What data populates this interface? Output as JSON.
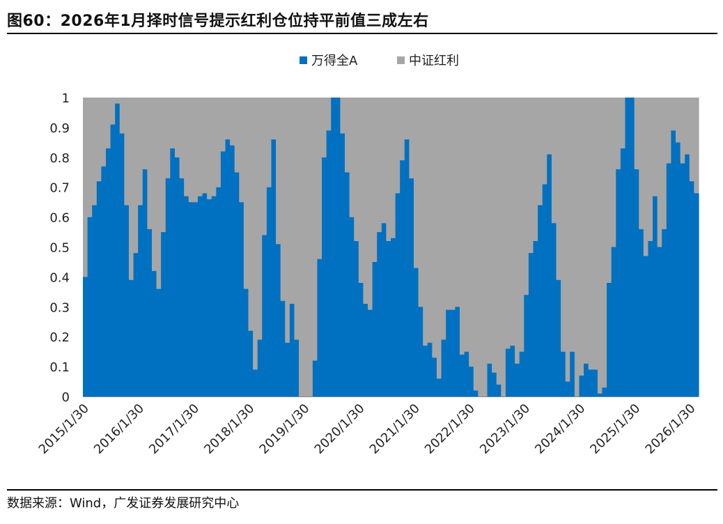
{
  "figure": {
    "title": "图60：2026年1月择时信号提示红利仓位持平前值三成左右",
    "source": "数据来源：Wind，广发证券发展研究中心"
  },
  "chart_data": {
    "type": "bar",
    "stacked": true,
    "ylim": [
      0,
      1
    ],
    "y_ticks": [
      "0",
      "0.1",
      "0.2",
      "0.3",
      "0.4",
      "0.5",
      "0.6",
      "0.7",
      "0.8",
      "0.9",
      "1"
    ],
    "x_ticks": [
      "2015/1/30",
      "2016/1/30",
      "2017/1/30",
      "2018/1/30",
      "2019/1/30",
      "2020/1/30",
      "2021/1/30",
      "2022/1/30",
      "2023/1/30",
      "2024/1/30",
      "2025/1/30",
      "2026/1/30"
    ],
    "legend_position": "top-center",
    "colors": {
      "wande": "#0070C0",
      "dividend": "#A6A6A6"
    },
    "series": [
      {
        "name": "万得全A",
        "role": "wande",
        "values": [
          0.4,
          0.6,
          0.64,
          0.72,
          0.77,
          0.83,
          0.91,
          0.98,
          0.88,
          0.64,
          0.39,
          0.48,
          0.64,
          0.76,
          0.56,
          0.42,
          0.36,
          0.55,
          0.73,
          0.83,
          0.8,
          0.73,
          0.67,
          0.65,
          0.65,
          0.67,
          0.68,
          0.66,
          0.67,
          0.7,
          0.82,
          0.86,
          0.84,
          0.75,
          0.65,
          0.36,
          0.22,
          0.09,
          0.19,
          0.54,
          0.7,
          0.86,
          0.51,
          0.32,
          0.18,
          0.31,
          0.19,
          0.0,
          0.0,
          0.0,
          0.12,
          0.46,
          0.8,
          0.89,
          1.0,
          1.0,
          0.88,
          0.75,
          0.6,
          0.52,
          0.38,
          0.31,
          0.29,
          0.45,
          0.55,
          0.58,
          0.52,
          0.53,
          0.68,
          0.79,
          0.86,
          0.73,
          0.43,
          0.3,
          0.17,
          0.18,
          0.13,
          0.06,
          0.19,
          0.29,
          0.29,
          0.3,
          0.14,
          0.15,
          0.1,
          0.02,
          0.0,
          0.0,
          0.11,
          0.08,
          0.04,
          0.0,
          0.16,
          0.17,
          0.11,
          0.15,
          0.34,
          0.48,
          0.52,
          0.64,
          0.71,
          0.81,
          0.58,
          0.39,
          0.15,
          0.05,
          0.15,
          0.0,
          0.07,
          0.11,
          0.09,
          0.09,
          0.01,
          0.03,
          0.38,
          0.5,
          0.76,
          0.83,
          1.0,
          1.0,
          0.76,
          0.56,
          0.47,
          0.52,
          0.67,
          0.5,
          0.56,
          0.78,
          0.89,
          0.85,
          0.78,
          0.81,
          0.72,
          0.68
        ]
      },
      {
        "name": "中证红利",
        "role": "dividend",
        "values": "remainder-to-1"
      }
    ]
  }
}
